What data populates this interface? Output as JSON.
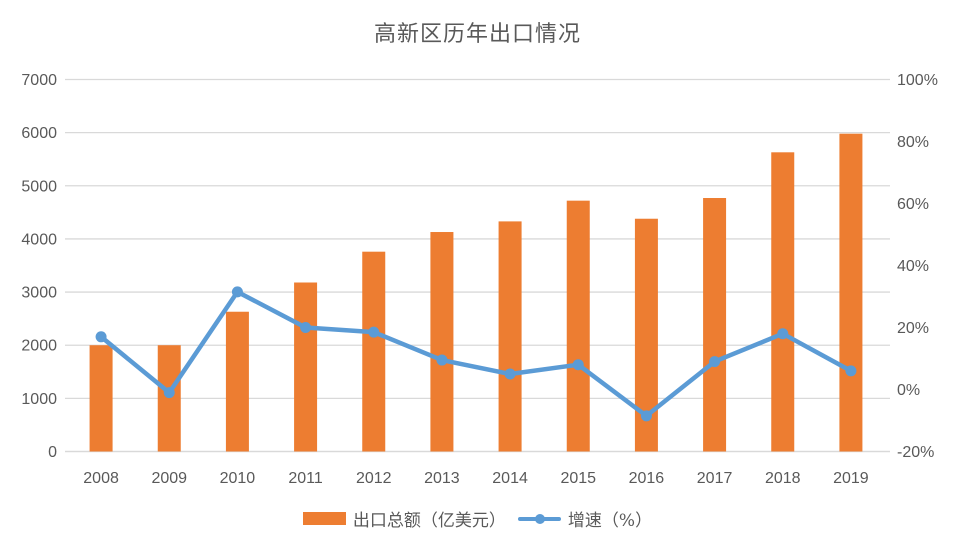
{
  "title": "高新区历年出口情况",
  "colors": {
    "bar": "#ED7D31",
    "line": "#5B9BD5",
    "grid": "#D9D9D9",
    "axis_text": "#595959",
    "title_text": "#595959",
    "background": "#FFFFFF"
  },
  "legend": {
    "items": [
      {
        "label": "出口总额（亿美元）",
        "swatch": "bar"
      },
      {
        "label": "增速（%）",
        "swatch": "line"
      }
    ]
  },
  "chart_data": {
    "type": "combo-bar-line",
    "title": "高新区历年出口情况",
    "categories": [
      "2008",
      "2009",
      "2010",
      "2011",
      "2012",
      "2013",
      "2014",
      "2015",
      "2016",
      "2017",
      "2018",
      "2019"
    ],
    "series": [
      {
        "name": "出口总额（亿美元）",
        "type": "bar",
        "axis": "left",
        "color": "#ED7D31",
        "values": [
          2000,
          2000,
          2630,
          3180,
          3760,
          4130,
          4330,
          4720,
          4380,
          4770,
          5630,
          5980
        ]
      },
      {
        "name": "增速（%）",
        "type": "line",
        "axis": "right",
        "color": "#5B9BD5",
        "values": [
          17,
          -1,
          31.5,
          20,
          18.5,
          9.5,
          5,
          8,
          -8.5,
          9,
          18,
          6
        ]
      }
    ],
    "left_axis": {
      "min": 0,
      "max": 7000,
      "step": 1000,
      "tick_labels": [
        "0",
        "1000",
        "2000",
        "3000",
        "4000",
        "5000",
        "6000",
        "7000"
      ]
    },
    "right_axis": {
      "min": -20,
      "max": 100,
      "step": 20,
      "tick_labels": [
        "-20%",
        "0%",
        "20%",
        "40%",
        "60%",
        "80%",
        "100%"
      ]
    },
    "grid": true,
    "legend_position": "bottom"
  }
}
